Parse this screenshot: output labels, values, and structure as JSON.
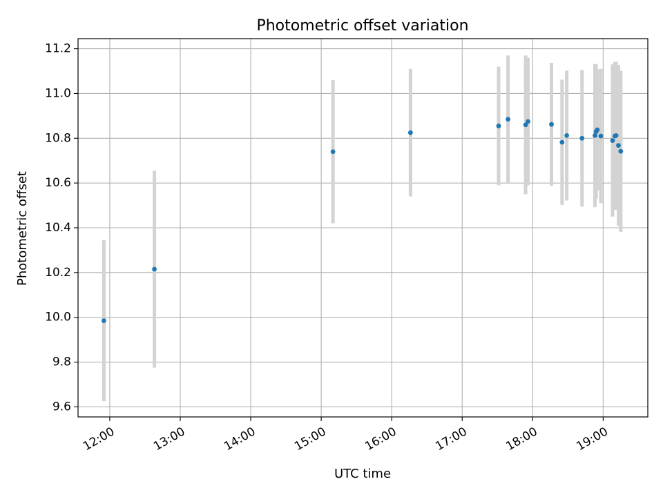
{
  "chart_data": {
    "type": "scatter",
    "title": "Photometric offset variation",
    "xlabel": "UTC time",
    "ylabel": "Photometric offset",
    "x_ticks": [
      "12:00",
      "13:00",
      "14:00",
      "15:00",
      "16:00",
      "17:00",
      "18:00",
      "19:00"
    ],
    "y_ticks": [
      "9.6",
      "9.8",
      "10.0",
      "10.2",
      "10.4",
      "10.6",
      "10.8",
      "11.0",
      "11.2"
    ],
    "xlim": [
      "11:33",
      "19:38"
    ],
    "ylim": [
      9.555,
      11.245
    ],
    "grid": true,
    "marker_color": "#1f77b4",
    "errorbar_color": "#d3d3d3",
    "points": [
      {
        "t": "11:55",
        "y": 9.985,
        "err": 0.36
      },
      {
        "t": "12:38",
        "y": 10.215,
        "err": 0.44
      },
      {
        "t": "15:10",
        "y": 10.74,
        "err": 0.32
      },
      {
        "t": "16:16",
        "y": 10.825,
        "err": 0.285
      },
      {
        "t": "17:31",
        "y": 10.855,
        "err": 0.265
      },
      {
        "t": "17:39",
        "y": 10.885,
        "err": 0.285
      },
      {
        "t": "17:54",
        "y": 10.86,
        "err": 0.31
      },
      {
        "t": "17:56",
        "y": 10.875,
        "err": 0.285
      },
      {
        "t": "18:16",
        "y": 10.862,
        "err": 0.275
      },
      {
        "t": "18:25",
        "y": 10.782,
        "err": 0.28
      },
      {
        "t": "18:29",
        "y": 10.812,
        "err": 0.29
      },
      {
        "t": "18:42",
        "y": 10.8,
        "err": 0.305
      },
      {
        "t": "18:53",
        "y": 10.812,
        "err": 0.32
      },
      {
        "t": "18:54",
        "y": 10.83,
        "err": 0.3
      },
      {
        "t": "18:55",
        "y": 10.838,
        "err": 0.27
      },
      {
        "t": "18:58",
        "y": 10.81,
        "err": 0.3
      },
      {
        "t": "19:08",
        "y": 10.79,
        "err": 0.34
      },
      {
        "t": "19:10",
        "y": 10.81,
        "err": 0.33
      },
      {
        "t": "19:11",
        "y": 10.812,
        "err": 0.33
      },
      {
        "t": "19:13",
        "y": 10.768,
        "err": 0.36
      },
      {
        "t": "19:15",
        "y": 10.742,
        "err": 0.36
      }
    ]
  }
}
